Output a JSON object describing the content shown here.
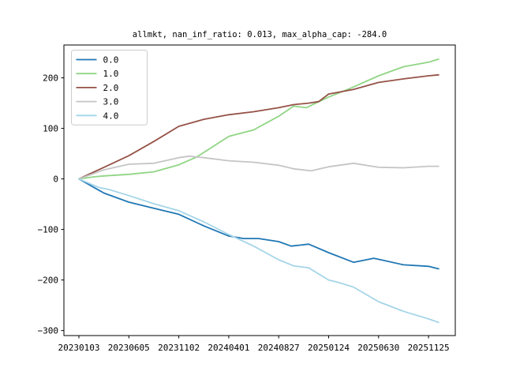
{
  "figure": {
    "background": "#ffffff"
  },
  "chart_data": {
    "type": "line",
    "title": "allmkt, nan_inf_ratio: 0.013, max_alpha_cap: -284.0",
    "grid": false,
    "legend": {
      "position": "upper left"
    },
    "x_axis": {
      "tick_labels": [
        "20230103",
        "20230605",
        "20231102",
        "20240401",
        "20240827",
        "20250124",
        "20250630",
        "20251125"
      ],
      "unit": "date YYYYMMDD, evenly spaced ticks"
    },
    "y_axis": {
      "ticks": [
        200,
        100,
        0,
        -100,
        -200,
        -300
      ],
      "tick_labels": [
        "200",
        "100",
        "0",
        "−100",
        "−200",
        "−300"
      ]
    },
    "ylim": [
      -310,
      265
    ],
    "x_note": "points are [t, value]; t in x-tick units: t=0 is 20230103, t=7 is 20251125, data ends t=7.2",
    "series": [
      {
        "name": "0.0",
        "color": "#1f77b4",
        "points": [
          [
            0,
            0
          ],
          [
            0.5,
            -28
          ],
          [
            1,
            -46
          ],
          [
            1.5,
            -58
          ],
          [
            2,
            -70
          ],
          [
            2.5,
            -93
          ],
          [
            3,
            -113
          ],
          [
            3.3,
            -118
          ],
          [
            3.6,
            -118
          ],
          [
            4,
            -124
          ],
          [
            4.25,
            -133
          ],
          [
            4.6,
            -129
          ],
          [
            5,
            -146
          ],
          [
            5.5,
            -165
          ],
          [
            5.9,
            -157
          ],
          [
            6,
            -159
          ],
          [
            6.5,
            -170
          ],
          [
            7,
            -173
          ],
          [
            7.2,
            -178
          ]
        ]
      },
      {
        "name": "1.0",
        "color": "#90d584",
        "points": [
          [
            0,
            0
          ],
          [
            0.3,
            4
          ],
          [
            0.5,
            6
          ],
          [
            1,
            9
          ],
          [
            1.5,
            14
          ],
          [
            2,
            28
          ],
          [
            2.35,
            43
          ],
          [
            2.7,
            65
          ],
          [
            3,
            84
          ],
          [
            3.5,
            97
          ],
          [
            4,
            124
          ],
          [
            4.3,
            144
          ],
          [
            4.55,
            141
          ],
          [
            5,
            162
          ],
          [
            5.45,
            180
          ],
          [
            6,
            204
          ],
          [
            6.5,
            222
          ],
          [
            7,
            231
          ],
          [
            7.2,
            237
          ]
        ]
      },
      {
        "name": "2.0",
        "color": "#955247",
        "points": [
          [
            0,
            0
          ],
          [
            0.5,
            23
          ],
          [
            1,
            46
          ],
          [
            1.5,
            74
          ],
          [
            2,
            104
          ],
          [
            2.5,
            118
          ],
          [
            3,
            127
          ],
          [
            3.5,
            133
          ],
          [
            4,
            141
          ],
          [
            4.3,
            147
          ],
          [
            4.6,
            150
          ],
          [
            4.8,
            153
          ],
          [
            5,
            168
          ],
          [
            5.5,
            177
          ],
          [
            6,
            191
          ],
          [
            6.5,
            198
          ],
          [
            7,
            204
          ],
          [
            7.2,
            206
          ]
        ]
      },
      {
        "name": "3.0",
        "color": "#c5c5c5",
        "points": [
          [
            0,
            0
          ],
          [
            0.5,
            18
          ],
          [
            1,
            29
          ],
          [
            1.5,
            31
          ],
          [
            2,
            42
          ],
          [
            2.2,
            45
          ],
          [
            2.5,
            42
          ],
          [
            3,
            36
          ],
          [
            3.5,
            33
          ],
          [
            4,
            27
          ],
          [
            4.3,
            20
          ],
          [
            4.65,
            16
          ],
          [
            5,
            24
          ],
          [
            5.5,
            31
          ],
          [
            6,
            23
          ],
          [
            6.5,
            22
          ],
          [
            7,
            25
          ],
          [
            7.2,
            25
          ]
        ]
      },
      {
        "name": "4.0",
        "color": "#a5d5e8",
        "points": [
          [
            0,
            0
          ],
          [
            0.4,
            -17
          ],
          [
            0.6,
            -21
          ],
          [
            1,
            -33
          ],
          [
            1.5,
            -49
          ],
          [
            2,
            -63
          ],
          [
            2.5,
            -85
          ],
          [
            3,
            -110
          ],
          [
            3.5,
            -133
          ],
          [
            4,
            -160
          ],
          [
            4.3,
            -172
          ],
          [
            4.6,
            -176
          ],
          [
            5,
            -200
          ],
          [
            5.2,
            -205
          ],
          [
            5.5,
            -214
          ],
          [
            6,
            -243
          ],
          [
            6.5,
            -262
          ],
          [
            7,
            -277
          ],
          [
            7.2,
            -284
          ]
        ]
      }
    ]
  }
}
